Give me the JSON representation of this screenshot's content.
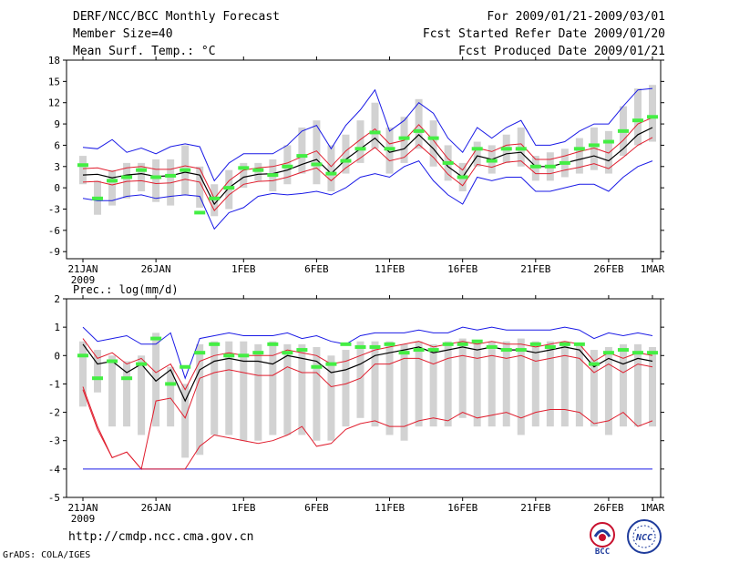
{
  "header": {
    "title": "DERF/NCC/BCC Monthly Forecast",
    "member_size": "Member Size=40",
    "variable": "Mean Surf. Temp.: °C",
    "period": "For 2009/01/21-2009/03/01",
    "started": "Fcst Started Refer Date 2009/01/20",
    "produced": "Fcst Produced Date 2009/01/21"
  },
  "footer": {
    "url": "http://cmdp.ncc.cma.gov.cn",
    "credit": "GrADS: COLA/IGES",
    "logo_bcc": "BCC",
    "logo_ncc": "NCC"
  },
  "colors": {
    "box": "#d2d2d2",
    "mean": "#000000",
    "spread": "#e01e2e",
    "extreme": "#1a1ae6",
    "observed": "#44ee44"
  },
  "chart_data": [
    {
      "type": "line",
      "title": "Mean Surf. Temp.: °C",
      "x_ticks": [
        "21JAN",
        "26JAN",
        "1FEB",
        "6FEB",
        "11FEB",
        "16FEB",
        "21FEB",
        "26FEB",
        "1MAR"
      ],
      "x_tick_days": [
        1,
        6,
        12,
        17,
        22,
        27,
        32,
        37,
        40
      ],
      "x_year": "2009",
      "ylim": [
        -10,
        18
      ],
      "y_ticks": [
        -9,
        -6,
        -3,
        0,
        3,
        6,
        9,
        12,
        15,
        18
      ],
      "series": [
        {
          "name": "ensemble mean",
          "values": [
            1.8,
            1.9,
            1.4,
            1.8,
            2.0,
            1.6,
            1.7,
            2.2,
            1.8,
            -2.3,
            0.0,
            1.5,
            1.9,
            2.0,
            2.5,
            3.3,
            4.0,
            2.0,
            4.0,
            5.5,
            7.0,
            5.0,
            5.5,
            7.5,
            5.5,
            3.0,
            1.5,
            4.5,
            4.0,
            4.8,
            5.0,
            3.0,
            3.0,
            3.5,
            4.0,
            4.5,
            3.8,
            5.5,
            7.5,
            8.5
          ]
        },
        {
          "name": "mean + spread",
          "values": [
            2.7,
            2.8,
            2.3,
            2.8,
            3.0,
            2.6,
            2.6,
            3.1,
            2.7,
            -1.5,
            1.0,
            2.5,
            2.8,
            3.0,
            3.5,
            4.4,
            5.2,
            3.0,
            5.2,
            6.8,
            8.3,
            6.2,
            6.7,
            8.9,
            6.7,
            4.1,
            2.5,
            5.6,
            5.1,
            6.0,
            6.2,
            4.0,
            4.0,
            4.5,
            5.1,
            5.6,
            4.9,
            6.7,
            9.0,
            9.9
          ]
        },
        {
          "name": "mean - spread",
          "values": [
            0.8,
            0.9,
            0.4,
            0.9,
            1.0,
            0.6,
            0.7,
            1.2,
            0.8,
            -3.2,
            -1.0,
            0.5,
            0.9,
            1.0,
            1.5,
            2.2,
            2.8,
            1.0,
            2.8,
            4.2,
            5.7,
            3.8,
            4.3,
            6.1,
            4.3,
            1.9,
            0.3,
            3.3,
            2.9,
            3.6,
            3.8,
            2.0,
            2.0,
            2.5,
            2.9,
            3.4,
            2.7,
            4.3,
            6.0,
            7.1
          ]
        },
        {
          "name": "ensemble max",
          "values": [
            5.7,
            5.5,
            6.8,
            5.0,
            5.6,
            4.8,
            5.8,
            6.2,
            5.8,
            1.0,
            3.5,
            4.8,
            4.8,
            4.8,
            6.0,
            8.0,
            8.8,
            5.5,
            8.8,
            11.0,
            13.8,
            8.0,
            9.5,
            12.0,
            10.5,
            7.0,
            5.0,
            8.5,
            7.0,
            8.5,
            9.5,
            6.0,
            6.0,
            6.5,
            8.0,
            9.0,
            9.0,
            11.5,
            13.8,
            14.0
          ]
        },
        {
          "name": "ensemble min",
          "values": [
            -1.5,
            -1.8,
            -1.8,
            -1.2,
            -1.0,
            -1.5,
            -1.2,
            -1.0,
            -1.2,
            -5.8,
            -3.5,
            -2.8,
            -1.2,
            -0.8,
            -1.0,
            -0.8,
            -0.5,
            -1.0,
            0.0,
            1.5,
            2.0,
            1.5,
            3.0,
            3.8,
            1.0,
            -1.0,
            -2.3,
            1.5,
            1.0,
            1.5,
            1.5,
            -0.5,
            -0.5,
            0.0,
            0.5,
            0.5,
            -0.5,
            1.5,
            3.0,
            3.8
          ]
        },
        {
          "name": "observed",
          "values": [
            3.2,
            -1.5,
            1.0,
            1.5,
            2.5,
            1.5,
            1.7,
            2.5,
            -3.5,
            -1.5,
            0.0,
            2.8,
            2.5,
            1.8,
            3.0,
            4.5,
            3.3,
            2.0,
            3.8,
            5.5,
            7.8,
            5.5,
            7.0,
            8.0,
            7.0,
            3.5,
            1.5,
            5.5,
            3.8,
            5.5,
            5.5,
            3.0,
            3.0,
            3.5,
            5.5,
            6.0,
            6.5,
            8.0,
            9.5,
            10.0
          ]
        }
      ],
      "box_low": [
        0.5,
        -3.8,
        -2.5,
        -1.5,
        -0.5,
        -2.0,
        -2.5,
        -1.0,
        -2.8,
        -4.0,
        -3.0,
        0.0,
        1.0,
        -0.5,
        0.5,
        2.0,
        0.5,
        -0.5,
        2.0,
        3.5,
        5.5,
        2.0,
        3.5,
        5.5,
        3.0,
        1.0,
        -0.5,
        3.0,
        2.0,
        3.5,
        3.0,
        1.0,
        1.0,
        1.5,
        2.0,
        2.5,
        2.0,
        4.5,
        6.0,
        6.5
      ],
      "box_high": [
        4.5,
        1.0,
        2.5,
        3.5,
        3.5,
        4.0,
        4.0,
        6.0,
        3.0,
        0.5,
        2.5,
        3.5,
        3.5,
        4.0,
        6.0,
        8.5,
        9.5,
        6.0,
        7.5,
        9.5,
        12.0,
        8.5,
        10.0,
        12.5,
        9.5,
        6.0,
        3.5,
        6.5,
        6.0,
        7.5,
        8.5,
        4.5,
        5.0,
        5.5,
        7.0,
        8.5,
        8.0,
        11.5,
        14.0,
        14.5
      ]
    },
    {
      "type": "line",
      "title": "Prec.: log(mm/d)",
      "x_ticks": [
        "21JAN",
        "26JAN",
        "1FEB",
        "6FEB",
        "11FEB",
        "16FEB",
        "21FEB",
        "26FEB",
        "1MAR"
      ],
      "x_tick_days": [
        1,
        6,
        12,
        17,
        22,
        27,
        32,
        37,
        40
      ],
      "x_year": "2009",
      "ylim": [
        -5,
        2
      ],
      "y_ticks": [
        -5,
        -4,
        -3,
        -2,
        -1,
        0,
        1,
        2
      ],
      "series": [
        {
          "name": "ensemble mean",
          "values": [
            0.4,
            -0.3,
            -0.2,
            -0.6,
            -0.3,
            -0.9,
            -0.5,
            -1.6,
            -0.5,
            -0.2,
            -0.1,
            -0.2,
            -0.2,
            -0.3,
            0.0,
            -0.1,
            -0.2,
            -0.6,
            -0.5,
            -0.3,
            0.0,
            0.1,
            0.2,
            0.3,
            0.1,
            0.2,
            0.3,
            0.2,
            0.3,
            0.2,
            0.2,
            0.1,
            0.2,
            0.3,
            0.2,
            -0.4,
            -0.1,
            -0.3,
            -0.1,
            -0.2
          ]
        },
        {
          "name": "mean + spread",
          "values": [
            0.6,
            -0.1,
            0.1,
            -0.3,
            -0.1,
            -0.6,
            -0.3,
            -1.2,
            -0.2,
            0.0,
            0.1,
            0.0,
            0.0,
            0.0,
            0.2,
            0.1,
            0.0,
            -0.3,
            -0.2,
            0.0,
            0.2,
            0.3,
            0.4,
            0.5,
            0.3,
            0.4,
            0.5,
            0.4,
            0.5,
            0.4,
            0.4,
            0.3,
            0.4,
            0.5,
            0.4,
            -0.2,
            0.1,
            -0.1,
            0.1,
            0.0
          ]
        },
        {
          "name": "mean - spread",
          "values": [
            -1.1,
            -2.5,
            -3.6,
            -3.4,
            -4.0,
            -1.6,
            -1.5,
            -2.2,
            -0.8,
            -0.6,
            -0.5,
            -0.6,
            -0.7,
            -0.7,
            -0.4,
            -0.6,
            -0.6,
            -1.1,
            -1.0,
            -0.8,
            -0.3,
            -0.3,
            -0.1,
            -0.1,
            -0.3,
            -0.1,
            0.0,
            -0.1,
            0.0,
            -0.1,
            0.0,
            -0.2,
            -0.1,
            0.0,
            -0.1,
            -0.6,
            -0.3,
            -0.6,
            -0.3,
            -0.4
          ]
        },
        {
          "name": "ensemble max",
          "values": [
            1.0,
            0.5,
            0.6,
            0.7,
            0.4,
            0.4,
            0.8,
            -0.8,
            0.6,
            0.7,
            0.8,
            0.7,
            0.7,
            0.7,
            0.8,
            0.6,
            0.7,
            0.5,
            0.4,
            0.7,
            0.8,
            0.8,
            0.8,
            0.9,
            0.8,
            0.8,
            1.0,
            0.9,
            1.0,
            0.9,
            0.9,
            0.9,
            0.9,
            1.0,
            0.9,
            0.6,
            0.8,
            0.7,
            0.8,
            0.7
          ]
        },
        {
          "name": "ensemble min",
          "values": [
            -4,
            -4,
            -4,
            -4,
            -4,
            -4,
            -4,
            -4,
            -4,
            -4,
            -4,
            -4,
            -4,
            -4,
            -4,
            -4,
            -4,
            -4,
            -4,
            -4,
            -4,
            -4,
            -4,
            -4,
            -4,
            -4,
            -4,
            -4,
            -4,
            -4,
            -4,
            -4,
            -4,
            -4,
            -4,
            -4,
            -4,
            -4,
            -4,
            -4
          ]
        },
        {
          "name": "lower percentile",
          "values": [
            -1.2,
            -2.6,
            -3.6,
            -3.4,
            -4.0,
            -4.0,
            -4.0,
            -4.0,
            -3.2,
            -2.8,
            -2.9,
            -3.0,
            -3.1,
            -3.0,
            -2.8,
            -2.5,
            -3.2,
            -3.1,
            -2.6,
            -2.4,
            -2.3,
            -2.5,
            -2.5,
            -2.3,
            -2.2,
            -2.3,
            -2.0,
            -2.2,
            -2.1,
            -2.0,
            -2.2,
            -2.0,
            -1.9,
            -1.9,
            -2.0,
            -2.4,
            -2.3,
            -2.0,
            -2.5,
            -2.3
          ]
        },
        {
          "name": "observed",
          "values": [
            0.0,
            -0.8,
            -0.2,
            -0.8,
            -0.3,
            0.6,
            -1.0,
            -0.4,
            0.1,
            0.4,
            0.0,
            0.0,
            0.1,
            0.4,
            0.1,
            0.2,
            -0.4,
            -0.3,
            0.4,
            0.3,
            0.3,
            0.4,
            0.1,
            0.2,
            0.2,
            0.4,
            0.4,
            0.5,
            0.3,
            0.2,
            0.2,
            0.4,
            0.3,
            0.4,
            0.4,
            -0.3,
            0.1,
            0.2,
            0.1,
            0.1
          ]
        }
      ],
      "box_low": [
        -1.8,
        -1.3,
        -2.5,
        -2.5,
        -2.8,
        -2.5,
        -2.5,
        -3.6,
        -3.5,
        -2.8,
        -2.8,
        -3.0,
        -3.0,
        -2.8,
        -2.8,
        -2.8,
        -3.0,
        -3.0,
        -2.5,
        -2.2,
        -2.5,
        -2.8,
        -3.0,
        -2.5,
        -2.5,
        -2.5,
        -2.2,
        -2.5,
        -2.5,
        -2.5,
        -2.8,
        -2.5,
        -2.5,
        -2.5,
        -2.5,
        -2.5,
        -2.8,
        -2.5,
        -2.5,
        -2.5
      ],
      "box_high": [
        0.5,
        0.2,
        0.0,
        -0.2,
        0.0,
        0.8,
        -0.4,
        -1.0,
        0.4,
        0.5,
        0.5,
        0.5,
        0.4,
        0.5,
        0.4,
        0.4,
        0.3,
        0.0,
        0.2,
        0.5,
        0.5,
        0.5,
        0.4,
        0.5,
        0.4,
        0.5,
        0.6,
        0.5,
        0.5,
        0.5,
        0.6,
        0.5,
        0.5,
        0.5,
        0.4,
        0.2,
        0.3,
        0.4,
        0.4,
        0.3
      ]
    }
  ]
}
